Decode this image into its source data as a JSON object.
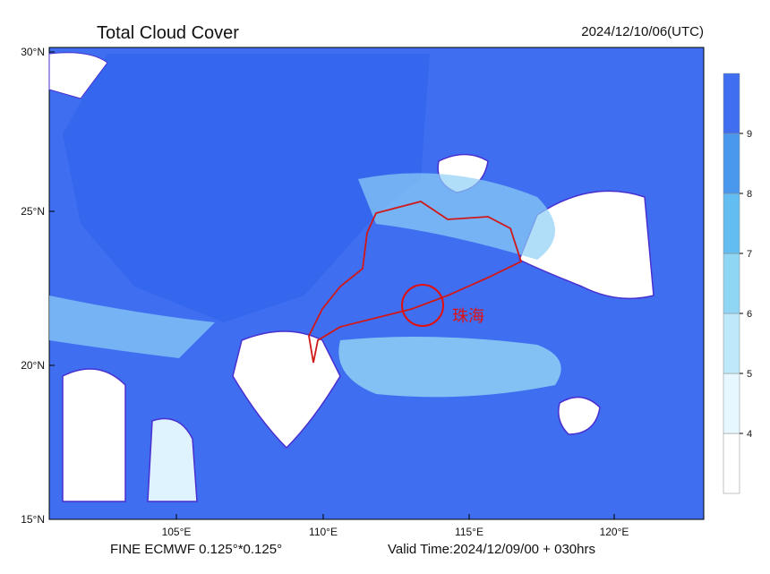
{
  "header": {
    "title": "Total Cloud Cover",
    "time": "2024/12/10/06(UTC)"
  },
  "map": {
    "lat_labels": [
      "30°N",
      "25°N",
      "20°N",
      "15°N"
    ],
    "lon_labels": [
      "105°E",
      "110°E",
      "115°E",
      "120°E"
    ],
    "annotation": "珠海"
  },
  "colorbar": {
    "labels": [
      4,
      5,
      6,
      7,
      8,
      9
    ]
  },
  "footer": {
    "model": "FINE ECMWF 0.125°*0.125°",
    "valid": "Valid Time:2024/12/09/00 + 030hrs"
  }
}
